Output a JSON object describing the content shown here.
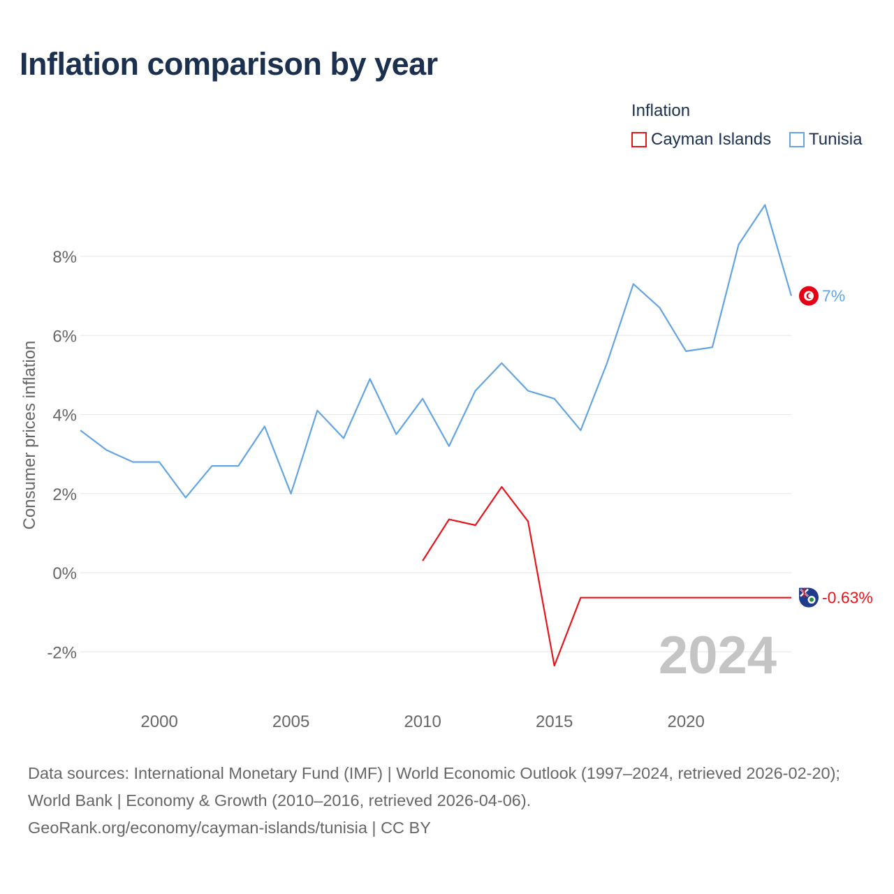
{
  "title": "Inflation comparison by year",
  "legend": {
    "title": "Inflation",
    "items": [
      {
        "label": "Cayman Islands",
        "color": "#e8141b"
      },
      {
        "label": "Tunisia",
        "color": "#63a4e2"
      }
    ]
  },
  "chart_data": {
    "type": "line",
    "ylabel": "Consumer prices inflation",
    "xlabel": "",
    "xlim": [
      1997,
      2024
    ],
    "ylim": [
      -3,
      10
    ],
    "x_ticks": [
      "2000",
      "2005",
      "2010",
      "2015",
      "2020"
    ],
    "y_ticks": [
      "-2%",
      "0%",
      "2%",
      "4%",
      "6%",
      "8%"
    ],
    "year_watermark": "2024",
    "series": [
      {
        "name": "Tunisia",
        "color": "#63a4e2",
        "x": [
          1997,
          1998,
          1999,
          2000,
          2001,
          2002,
          2003,
          2004,
          2005,
          2006,
          2007,
          2008,
          2009,
          2010,
          2011,
          2012,
          2013,
          2014,
          2015,
          2016,
          2017,
          2018,
          2019,
          2020,
          2021,
          2022,
          2023,
          2024
        ],
        "values": [
          3.6,
          3.1,
          2.8,
          2.8,
          1.9,
          2.7,
          2.7,
          3.7,
          2.0,
          4.1,
          3.4,
          4.9,
          3.5,
          4.4,
          3.2,
          4.6,
          5.3,
          4.6,
          4.4,
          3.6,
          5.3,
          7.3,
          6.7,
          5.6,
          5.7,
          8.3,
          9.3,
          7.0
        ],
        "end_label": "7%"
      },
      {
        "name": "Cayman Islands",
        "color": "#e8141b",
        "x": [
          2010,
          2011,
          2012,
          2013,
          2014,
          2015,
          2016,
          2017,
          2018,
          2019,
          2020,
          2021,
          2022,
          2023,
          2024
        ],
        "values": [
          0.3,
          1.35,
          1.2,
          2.17,
          1.3,
          -2.35,
          -0.63,
          -0.63,
          -0.63,
          -0.63,
          -0.63,
          -0.63,
          -0.63,
          -0.63,
          -0.63
        ],
        "end_label": "-0.63%"
      }
    ]
  },
  "source": {
    "line1": "Data sources: International Monetary Fund (IMF) | World Economic Outlook (1997–2024, retrieved 2026-02-20); World Bank | Economy & Growth (2010–2016, retrieved 2026-04-06).",
    "line2": "GeoRank.org/economy/cayman-islands/tunisia | CC BY"
  }
}
